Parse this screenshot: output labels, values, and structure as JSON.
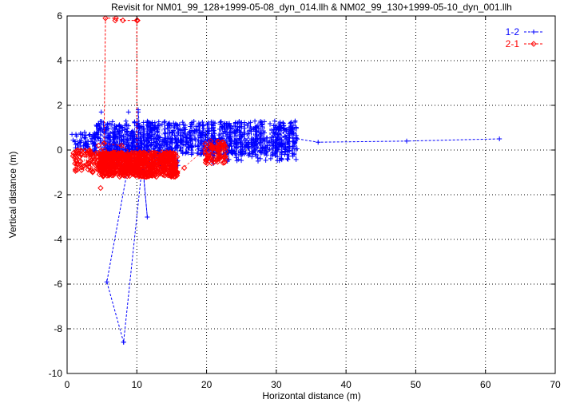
{
  "chart_data": {
    "type": "scatter",
    "title": "Revisit for NM01_99_128+1999-05-08_dyn_014.llh & NM02_99_130+1999-05-10_dyn_001.llh",
    "xlabel": "Horizontal distance (m)",
    "ylabel": "Vertical distance (m)",
    "xlim": [
      0,
      70
    ],
    "ylim": [
      -10,
      6
    ],
    "xticks": [
      0,
      10,
      20,
      30,
      40,
      50,
      60,
      70
    ],
    "yticks": [
      -10,
      -8,
      -6,
      -4,
      -2,
      0,
      2,
      4,
      6
    ],
    "grid": true,
    "legend_position": "top-right",
    "series": [
      {
        "name": "1-2",
        "color": "#0000ff",
        "marker": "plus",
        "line": "dashed",
        "outline": [
          [
            8.1,
            -8.6
          ],
          [
            5.7,
            -5.9
          ],
          [
            9.3,
            0.2
          ],
          [
            10.2,
            1.2
          ],
          [
            10.2,
            1.7
          ],
          [
            11.5,
            -3.0
          ],
          [
            10.8,
            -0.6
          ],
          [
            8.1,
            -8.6
          ]
        ],
        "clusters": [
          {
            "xrange": [
              0.8,
              3.5
            ],
            "yrange": [
              0.0,
              0.8
            ],
            "count": 40
          },
          {
            "xrange": [
              3.5,
              33.0
            ],
            "yrange": [
              -0.2,
              1.3
            ],
            "count": 900
          },
          {
            "xrange": [
              6.0,
              16.0
            ],
            "yrange": [
              -0.8,
              0.4
            ],
            "count": 120
          },
          {
            "xrange": [
              20.0,
              33.0
            ],
            "yrange": [
              -0.5,
              0.2
            ],
            "count": 80
          }
        ],
        "extra_points": [
          [
            0.7,
            0.7
          ],
          [
            1.2,
            0.1
          ],
          [
            4.9,
            1.7
          ],
          [
            8.8,
            1.7
          ],
          [
            10.2,
            1.8
          ],
          [
            9.7,
            -0.2
          ],
          [
            32.7,
            1.3
          ],
          [
            21.0,
            -0.6
          ],
          [
            23.0,
            -0.5
          ],
          [
            26.5,
            -0.3
          ],
          [
            33.0,
            0.5
          ],
          [
            36.0,
            0.35
          ],
          [
            48.7,
            0.4
          ],
          [
            62.0,
            0.5
          ]
        ],
        "trail": [
          [
            33.0,
            0.5
          ],
          [
            36.0,
            0.35
          ],
          [
            48.7,
            0.4
          ],
          [
            62.0,
            0.5
          ]
        ]
      },
      {
        "name": "2-1",
        "color": "#ff0000",
        "marker": "diamond",
        "line": "dashed",
        "outline": [
          [
            5.3,
            0.3
          ],
          [
            5.5,
            5.9
          ],
          [
            7.0,
            5.9
          ],
          [
            8.0,
            5.8
          ],
          [
            10.0,
            5.8
          ],
          [
            10.0,
            -0.3
          ],
          [
            7.8,
            0.2
          ],
          [
            5.3,
            0.3
          ]
        ],
        "clusters": [
          {
            "xrange": [
              0.8,
              5.5
            ],
            "yrange": [
              -1.0,
              0.0
            ],
            "count": 90
          },
          {
            "xrange": [
              4.5,
              15.8
            ],
            "yrange": [
              -1.2,
              -0.1
            ],
            "count": 700
          },
          {
            "xrange": [
              19.8,
              22.8
            ],
            "yrange": [
              -0.6,
              0.4
            ],
            "count": 70
          }
        ],
        "extra_points": [
          [
            4.8,
            -1.7
          ],
          [
            4.5,
            0.2
          ],
          [
            6.9,
            5.8
          ],
          [
            10.1,
            5.8
          ],
          [
            16.8,
            -0.8
          ],
          [
            22.5,
            0.1
          ]
        ],
        "trail": []
      }
    ]
  }
}
